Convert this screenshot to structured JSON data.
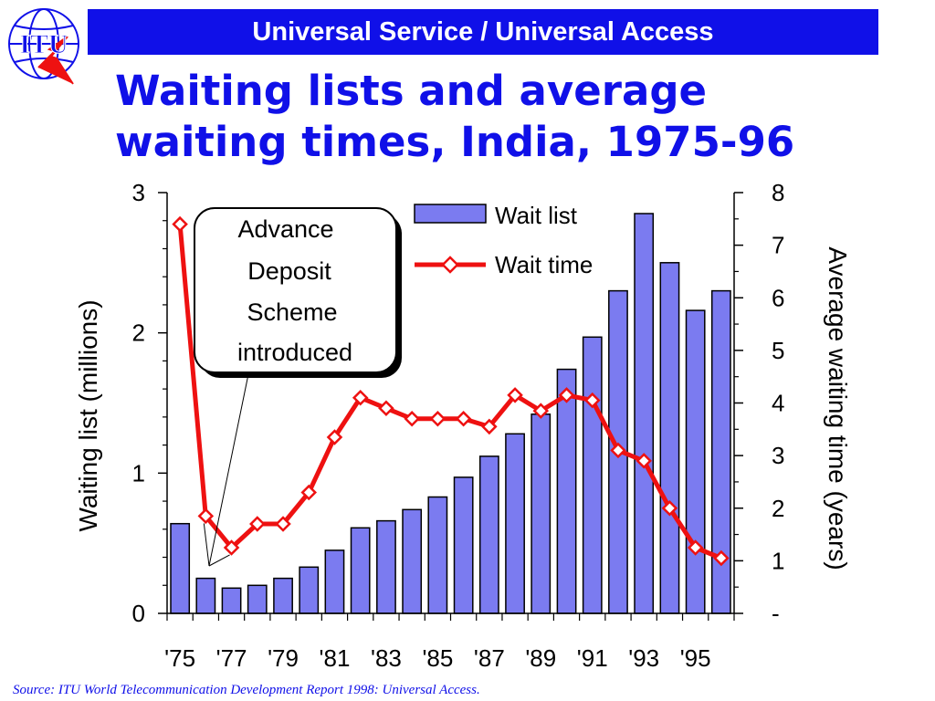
{
  "header": {
    "banner_text": "Universal Service / Universal Access",
    "logo_text": "ITU",
    "title_line1": "Waiting lists and average",
    "title_line2": "waiting times, India, 1975-96"
  },
  "source": "Source:  ITU World Telecommunication Development Report 1998: Universal Access.",
  "colors": {
    "banner": "#1010e8",
    "title": "#1010e8",
    "bar_fill": "#7b7bf0",
    "line": "#ee1111",
    "marker_fill": "#ffffff"
  },
  "chart_data": {
    "type": "bar",
    "x": [
      1975,
      1976,
      1977,
      1978,
      1979,
      1980,
      1981,
      1982,
      1983,
      1984,
      1985,
      1986,
      1987,
      1988,
      1989,
      1990,
      1991,
      1992,
      1993,
      1994,
      1995,
      1996
    ],
    "tick_labels": [
      "'75",
      "'77",
      "'79",
      "'81",
      "'83",
      "'85",
      "'87",
      "'89",
      "'91",
      "'93",
      "'95"
    ],
    "series": [
      {
        "name": "Wait list",
        "type": "bar",
        "axis": "left",
        "values": [
          0.64,
          0.25,
          0.18,
          0.2,
          0.25,
          0.33,
          0.45,
          0.61,
          0.66,
          0.74,
          0.83,
          0.97,
          1.12,
          1.28,
          1.42,
          1.74,
          1.97,
          2.3,
          2.85,
          2.5,
          2.16,
          2.3
        ]
      },
      {
        "name": "Wait time",
        "type": "line",
        "axis": "right",
        "values": [
          7.4,
          1.85,
          1.25,
          1.7,
          1.7,
          2.3,
          3.35,
          4.1,
          3.9,
          3.7,
          3.7,
          3.7,
          3.55,
          4.15,
          3.85,
          4.15,
          4.05,
          3.1,
          2.9,
          2.0,
          1.25,
          1.05
        ]
      }
    ],
    "ylabel": "Waiting list (millions)",
    "ylim": [
      0,
      3
    ],
    "yticks": [
      "0",
      "1",
      "2",
      "3"
    ],
    "y2label": "Average waiting time (years)",
    "y2lim": [
      0,
      8
    ],
    "y2ticks": [
      "-",
      "1",
      "2",
      "3",
      "4",
      "5",
      "6",
      "7",
      "8"
    ],
    "annotation": {
      "lines": [
        "Advance",
        "Deposit",
        "Scheme",
        "introduced"
      ],
      "points_to_years": [
        1976,
        1977
      ]
    },
    "legend": {
      "position": "top-right",
      "items": [
        "Wait list",
        "Wait time"
      ]
    },
    "grid": false
  }
}
